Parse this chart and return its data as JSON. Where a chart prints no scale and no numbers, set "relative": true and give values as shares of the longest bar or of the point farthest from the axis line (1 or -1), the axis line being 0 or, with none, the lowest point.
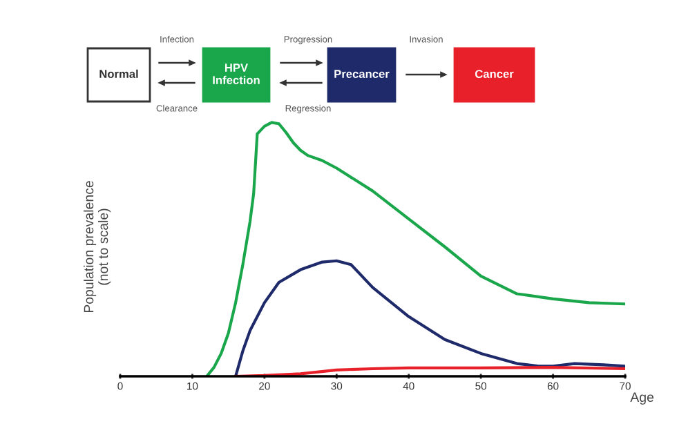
{
  "chart_data": {
    "type": "line",
    "relative": true,
    "xlabel": "Age",
    "ylabel": "Population prevalence\n(not to scale)",
    "xlim": [
      0,
      70
    ],
    "xticks": [
      0,
      10,
      20,
      30,
      40,
      50,
      60,
      70
    ],
    "tick_labels": "x",
    "grid": false,
    "legend": false,
    "annotations": [
      "Infection",
      "Clearance",
      "Progression",
      "Regression",
      "Invasion",
      "Normal",
      "HPV\nInfection",
      "Precancer",
      "Cancer"
    ],
    "series": [
      {
        "color": "#1aa64a",
        "x": [
          12,
          13,
          14,
          15,
          16,
          17,
          18,
          18.5,
          19,
          20,
          21,
          22,
          23,
          24,
          25,
          26,
          28,
          30,
          35,
          40,
          45,
          50,
          55,
          60,
          65,
          70
        ],
        "values": [
          0,
          0.035,
          0.09,
          0.17,
          0.29,
          0.44,
          0.61,
          0.72,
          0.955,
          0.985,
          1,
          0.995,
          0.96,
          0.92,
          0.89,
          0.87,
          0.85,
          0.82,
          0.73,
          0.62,
          0.51,
          0.395,
          0.325,
          0.305,
          0.29,
          0.285
        ]
      },
      {
        "color": "#1f2a6b",
        "x": [
          16,
          17,
          18,
          20,
          22,
          25,
          28,
          30,
          32,
          35,
          40,
          45,
          50,
          55,
          58,
          60,
          63,
          67,
          70
        ],
        "values": [
          0,
          0.1,
          0.18,
          0.29,
          0.37,
          0.42,
          0.45,
          0.455,
          0.44,
          0.35,
          0.235,
          0.145,
          0.09,
          0.05,
          0.04,
          0.04,
          0.05,
          0.045,
          0.04
        ]
      },
      {
        "color": "#e8202a",
        "x": [
          16,
          20,
          25,
          30,
          35,
          40,
          50,
          60,
          70
        ],
        "values": [
          0,
          0.003,
          0.01,
          0.025,
          0.03,
          0.033,
          0.033,
          0.035,
          0.03
        ]
      }
    ]
  }
}
